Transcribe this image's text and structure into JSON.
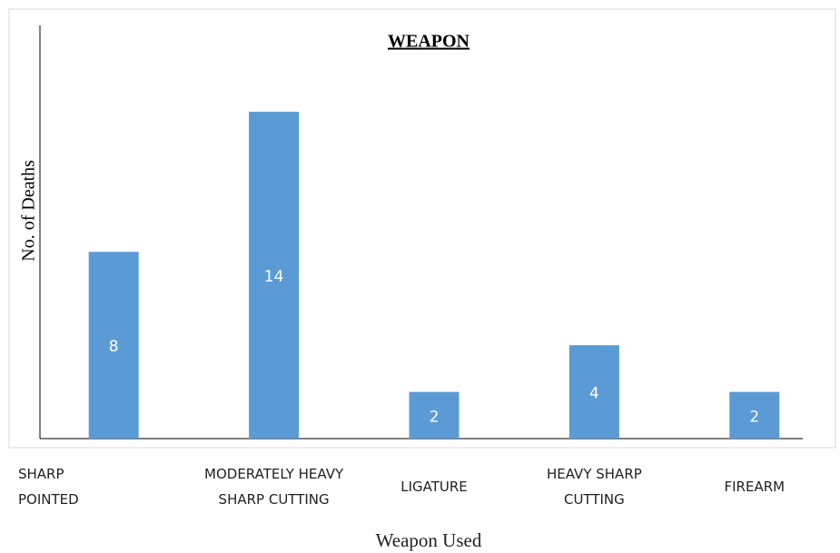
{
  "chart_data": {
    "type": "bar",
    "title": "WEAPON",
    "y_label": "No. of Deaths",
    "x_label": "Weapon Used",
    "categories": [
      "SHARP POINTED",
      "MODERATELY HEAVY SHARP CUTTING",
      "LIGATURE",
      "HEAVY SHARP CUTTING",
      "FIREARM"
    ],
    "values": [
      8,
      14,
      2,
      4,
      2
    ],
    "color": "#5b9bd5",
    "ylim": [
      0,
      17.7
    ],
    "grid": false
  }
}
